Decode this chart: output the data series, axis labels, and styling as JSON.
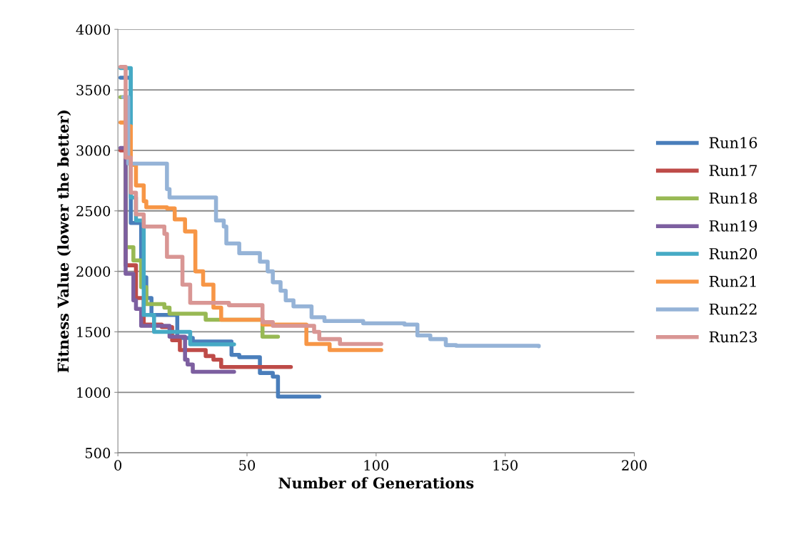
{
  "chart_data": {
    "type": "step",
    "xlabel": "Number of Generations",
    "ylabel": "Fitness Value (lower the better)",
    "xlim": [
      0,
      200
    ],
    "xticks": [
      0,
      50,
      100,
      150,
      200
    ],
    "ylim": [
      500,
      4000
    ],
    "yticks": [
      500,
      1000,
      1500,
      2000,
      2500,
      3000,
      3500,
      4000
    ],
    "grid": "y",
    "legend": "right",
    "line_style": "solid",
    "marker": "none",
    "series": [
      {
        "name": "Run16",
        "color": "#4a7ebb",
        "x": [
          1,
          5,
          9,
          11,
          13,
          23,
          29,
          44,
          47,
          55,
          60,
          62,
          78
        ],
        "values": [
          3600,
          2400,
          1950,
          1780,
          1640,
          1450,
          1420,
          1310,
          1290,
          1160,
          1130,
          965,
          965
        ]
      },
      {
        "name": "Run17",
        "color": "#be4b48",
        "x": [
          1,
          3,
          7,
          10,
          17,
          21,
          24,
          34,
          37,
          40,
          67
        ],
        "values": [
          3000,
          2050,
          1780,
          1560,
          1540,
          1430,
          1350,
          1300,
          1270,
          1210,
          1210
        ]
      },
      {
        "name": "Run18",
        "color": "#98b954",
        "x": [
          1,
          3,
          6,
          9,
          11,
          18,
          20,
          34,
          56,
          62
        ],
        "values": [
          3440,
          2200,
          2090,
          1870,
          1730,
          1700,
          1650,
          1600,
          1460,
          1460
        ]
      },
      {
        "name": "Run19",
        "color": "#7d5fa0",
        "x": [
          1,
          3,
          6,
          7,
          9,
          20,
          26,
          27,
          29,
          45
        ],
        "values": [
          3020,
          1980,
          1760,
          1690,
          1550,
          1460,
          1270,
          1230,
          1170,
          1170
        ]
      },
      {
        "name": "Run20",
        "color": "#46aac5",
        "x": [
          1,
          5,
          7,
          10,
          14,
          28,
          45
        ],
        "values": [
          3680,
          2610,
          2420,
          1640,
          1500,
          1397,
          1397
        ]
      },
      {
        "name": "Run21",
        "color": "#f79646",
        "x": [
          1,
          3,
          5,
          7,
          10,
          11,
          19,
          22,
          26,
          30,
          33,
          37,
          40,
          56,
          73,
          82,
          102
        ],
        "values": [
          3230,
          3200,
          2880,
          2710,
          2580,
          2530,
          2520,
          2430,
          2330,
          2000,
          1890,
          1700,
          1600,
          1560,
          1400,
          1350,
          1350
        ]
      },
      {
        "name": "Run22",
        "color": "#95b3d7",
        "x": [
          2,
          4,
          19,
          20,
          38,
          41,
          42,
          47,
          55,
          58,
          60,
          63,
          65,
          68,
          75,
          80,
          95,
          111,
          116,
          121,
          127,
          131,
          163
        ],
        "values": [
          3440,
          2890,
          2680,
          2610,
          2420,
          2370,
          2230,
          2150,
          2080,
          2000,
          1910,
          1840,
          1760,
          1710,
          1620,
          1590,
          1570,
          1560,
          1470,
          1440,
          1390,
          1385,
          1380
        ]
      },
      {
        "name": "Run23",
        "color": "#d99694",
        "x": [
          1,
          3,
          5,
          7,
          10,
          18,
          19,
          25,
          28,
          43,
          56,
          60,
          76,
          78,
          86,
          102
        ],
        "values": [
          3690,
          2940,
          2650,
          2470,
          2370,
          2310,
          2120,
          1890,
          1740,
          1720,
          1580,
          1550,
          1500,
          1440,
          1400,
          1400
        ]
      }
    ]
  }
}
